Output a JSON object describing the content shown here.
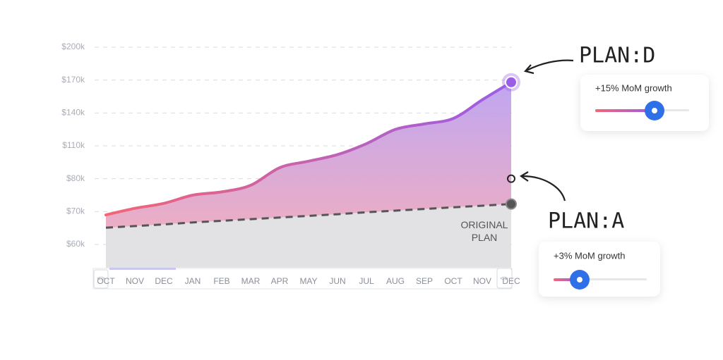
{
  "chart_data": {
    "type": "line",
    "categories": [
      "OCT",
      "NOV",
      "DEC",
      "JAN",
      "FEB",
      "MAR",
      "APR",
      "MAY",
      "JUN",
      "JUL",
      "AUG",
      "SEP",
      "OCT",
      "NOV",
      "DEC"
    ],
    "series": [
      {
        "name": "PLAN:D",
        "color": "#9b5de5",
        "values": [
          69000,
          71000,
          72500,
          75000,
          76000,
          78000,
          90000,
          96000,
          102000,
          112000,
          125000,
          130000,
          135000,
          152000,
          168000
        ]
      },
      {
        "name": "ORIGINAL PLAN",
        "color": "#555555",
        "values": [
          65100,
          65600,
          66100,
          66700,
          67200,
          67700,
          68200,
          68700,
          69200,
          69800,
          70300,
          70800,
          71300,
          71800,
          72300
        ]
      }
    ],
    "ylim": [
      60000,
      200000
    ],
    "yticks": [
      {
        "value": 200000,
        "label": "$200k"
      },
      {
        "value": 170000,
        "label": "$170k"
      },
      {
        "value": 140000,
        "label": "$140k"
      },
      {
        "value": 110000,
        "label": "$110k"
      },
      {
        "value": 80000,
        "label": "$80k"
      },
      {
        "value": 70000,
        "label": "$70k"
      },
      {
        "value": 60000,
        "label": "$60k"
      }
    ],
    "grid": true,
    "plan_a": {
      "label": "PLAN:A",
      "value": 80000
    },
    "cards": [
      {
        "title": "+15% MoM growth"
      },
      {
        "title": "+3% MoM growth"
      }
    ]
  }
}
